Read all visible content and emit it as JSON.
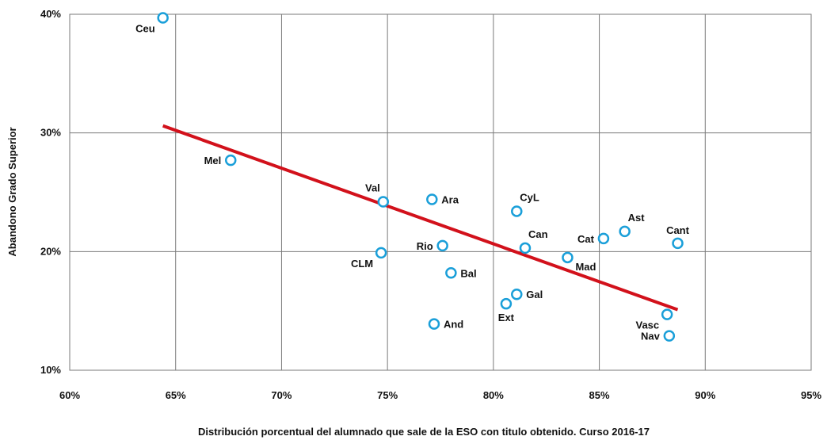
{
  "chart_data": {
    "type": "scatter",
    "title": "",
    "xlabel": "Distribución porcentual del alumnado que sale de la ESO con titulo obtenido. Curso 2016-17",
    "ylabel": "Abandono Grado Superior",
    "xlim": [
      60,
      95
    ],
    "ylim": [
      10,
      40
    ],
    "x_ticks": [
      60,
      65,
      70,
      75,
      80,
      85,
      90,
      95
    ],
    "y_ticks": [
      10,
      20,
      30,
      40
    ],
    "x_tick_labels": [
      "60%",
      "65%",
      "70%",
      "75%",
      "80%",
      "85%",
      "90%",
      "95%"
    ],
    "y_tick_labels": [
      "10%",
      "20%",
      "30%",
      "40%"
    ],
    "grid": true,
    "marker_color": "#1a9fd9",
    "trend_color": "#d2111b",
    "trendline": {
      "x": [
        64.4,
        88.7
      ],
      "y": [
        30.6,
        15.1
      ]
    },
    "points": [
      {
        "label": "Ceu",
        "x": 64.4,
        "y": 39.7,
        "label_pos": "left-below"
      },
      {
        "label": "Mel",
        "x": 67.6,
        "y": 27.7,
        "label_pos": "left"
      },
      {
        "label": "Val",
        "x": 74.8,
        "y": 24.2,
        "label_pos": "above-left"
      },
      {
        "label": "Ara",
        "x": 77.1,
        "y": 24.4,
        "label_pos": "right"
      },
      {
        "label": "CyL",
        "x": 81.1,
        "y": 23.4,
        "label_pos": "above-right"
      },
      {
        "label": "Ast",
        "x": 86.2,
        "y": 21.7,
        "label_pos": "above-right"
      },
      {
        "label": "Cat",
        "x": 85.2,
        "y": 21.1,
        "label_pos": "left"
      },
      {
        "label": "Cant",
        "x": 88.7,
        "y": 20.7,
        "label_pos": "above"
      },
      {
        "label": "Rio",
        "x": 77.6,
        "y": 20.5,
        "label_pos": "left"
      },
      {
        "label": "Can",
        "x": 81.5,
        "y": 20.3,
        "label_pos": "above-right"
      },
      {
        "label": "CLM",
        "x": 74.7,
        "y": 19.9,
        "label_pos": "left-below"
      },
      {
        "label": "Mad",
        "x": 83.5,
        "y": 19.5,
        "label_pos": "right-below"
      },
      {
        "label": "Bal",
        "x": 78.0,
        "y": 18.2,
        "label_pos": "right"
      },
      {
        "label": "Gal",
        "x": 81.1,
        "y": 16.4,
        "label_pos": "right"
      },
      {
        "label": "Ext",
        "x": 80.6,
        "y": 15.6,
        "label_pos": "below"
      },
      {
        "label": "Vasc",
        "x": 88.2,
        "y": 14.7,
        "label_pos": "left-below"
      },
      {
        "label": "And",
        "x": 77.2,
        "y": 13.9,
        "label_pos": "right"
      },
      {
        "label": "Nav",
        "x": 88.3,
        "y": 12.9,
        "label_pos": "left"
      }
    ]
  }
}
